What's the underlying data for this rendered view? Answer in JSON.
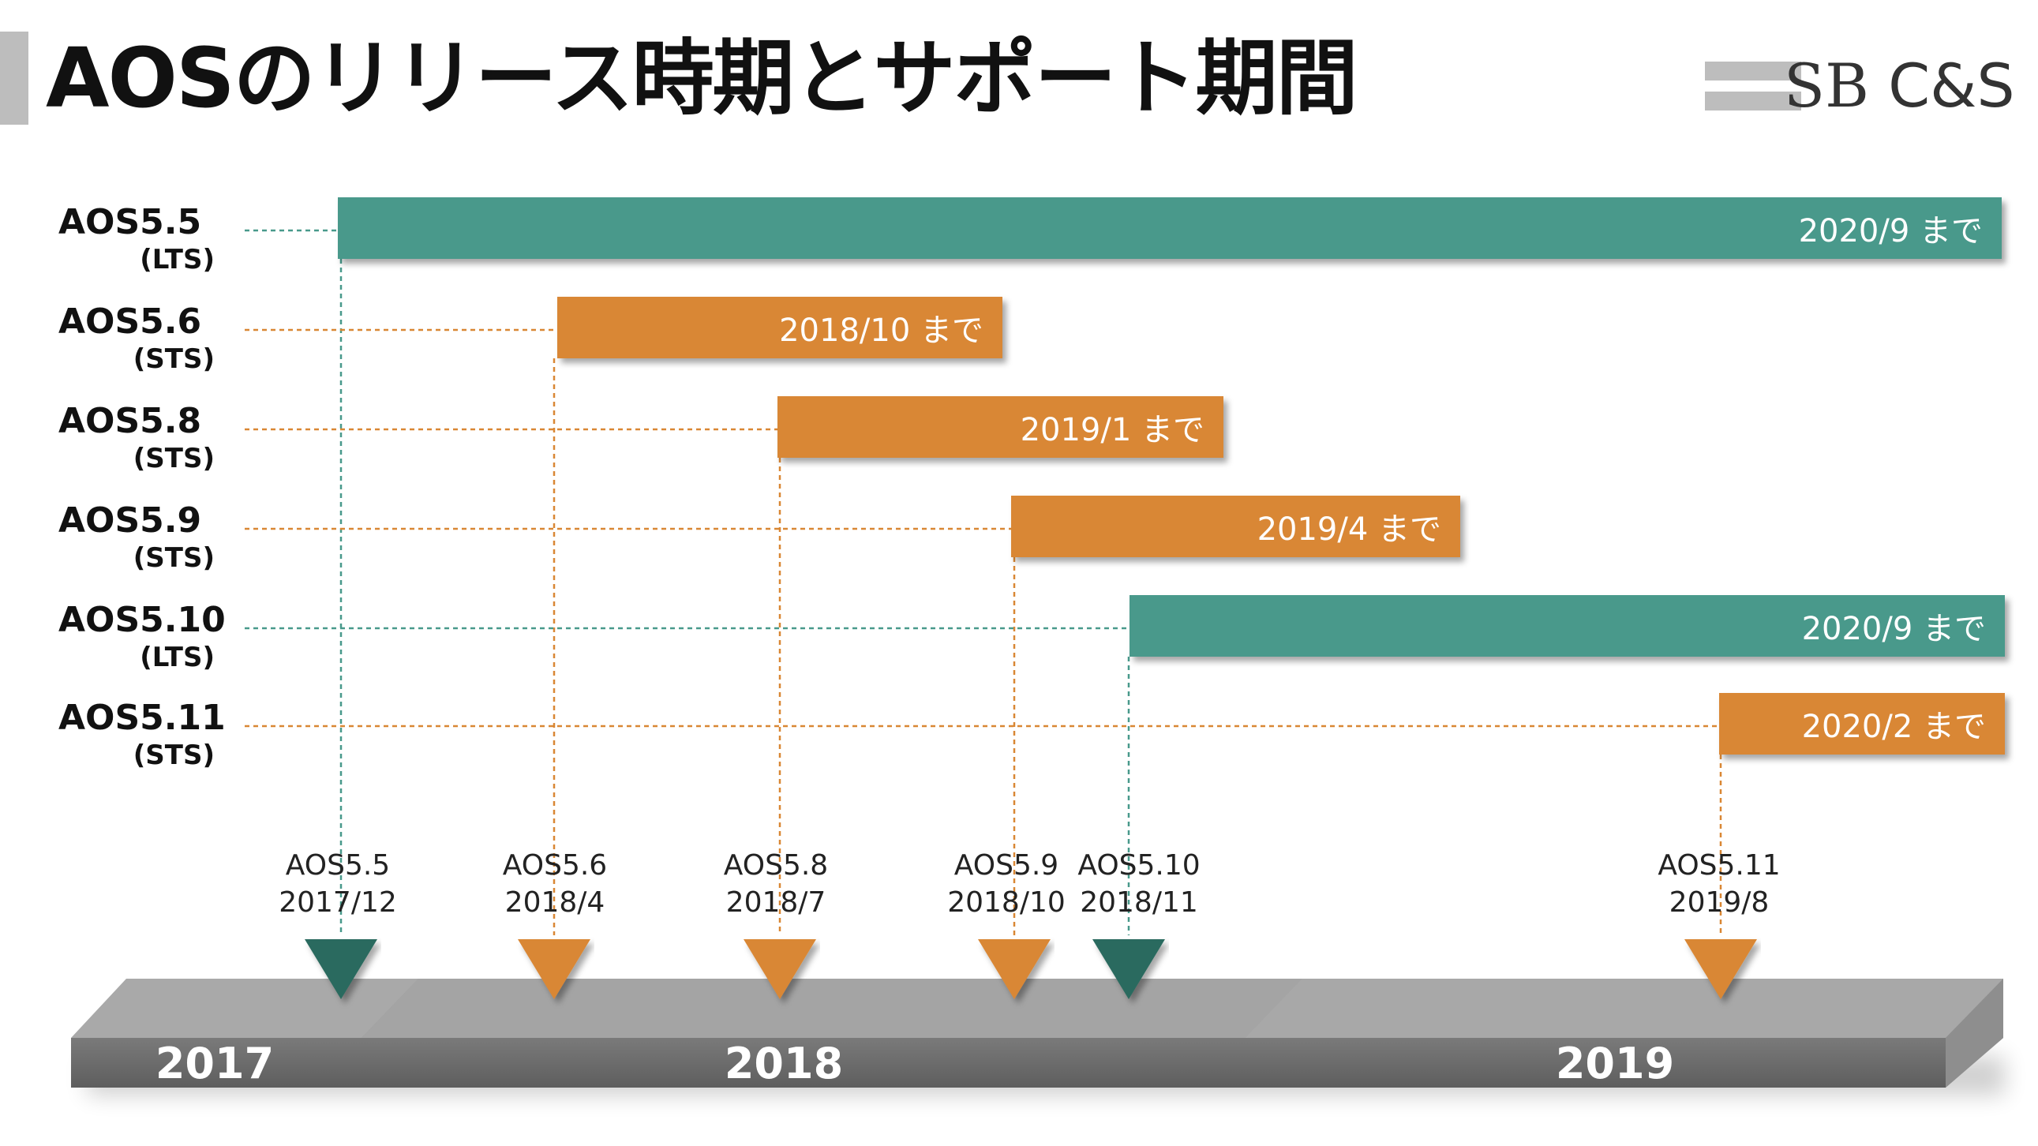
{
  "title": "AOSのリリース時期とサポート期間",
  "logo": {
    "text_left": "SB",
    "text_right": "C&S"
  },
  "colors": {
    "lts": "#48998b",
    "sts": "#d98734",
    "lts_marker": "#2c6b5e",
    "sts_marker": "#d98734",
    "timeline_dark": "#6e6e6e",
    "timeline_light": "#b2b2b2",
    "dark_text": "#111111"
  },
  "versions": [
    {
      "name": "AOS5.5",
      "type": "(LTS)",
      "kind": "lts",
      "bar_label": "2020/9 まで",
      "marker_name": "AOS5.5",
      "marker_date": "2017/12"
    },
    {
      "name": "AOS5.6",
      "type": "(STS)",
      "kind": "sts",
      "bar_label": "2018/10 まで",
      "marker_name": "AOS5.6",
      "marker_date": "2018/4"
    },
    {
      "name": "AOS5.8",
      "type": "(STS)",
      "kind": "sts",
      "bar_label": "2019/1 まで",
      "marker_name": "AOS5.8",
      "marker_date": "2018/7"
    },
    {
      "name": "AOS5.9",
      "type": "(STS)",
      "kind": "sts",
      "bar_label": "2019/4 まで",
      "marker_name": "AOS5.9",
      "marker_date": "2018/10"
    },
    {
      "name": "AOS5.10",
      "type": "(LTS)",
      "kind": "lts",
      "bar_label": "2020/9 まで",
      "marker_name": "AOS5.10",
      "marker_date": "2018/11"
    },
    {
      "name": "AOS5.11",
      "type": "(STS)",
      "kind": "sts",
      "bar_label": "2020/2 まで",
      "marker_name": "AOS5.11",
      "marker_date": "2019/8"
    }
  ],
  "years": [
    "2017",
    "2018",
    "2019"
  ]
}
